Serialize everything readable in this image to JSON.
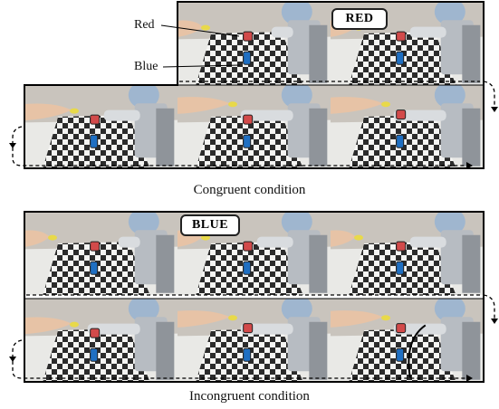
{
  "labels": {
    "red": "Red",
    "blue": "Blue"
  },
  "congruent": {
    "caption": "Congruent condition",
    "callout": "RED"
  },
  "incongruent": {
    "caption": "Incongruent condition",
    "callout": "BLUE"
  },
  "colors": {
    "red_block": "#d24a4a",
    "blue_block": "#1f6fc2",
    "background": "#c9c4bd",
    "table": "#e9e9e6"
  }
}
